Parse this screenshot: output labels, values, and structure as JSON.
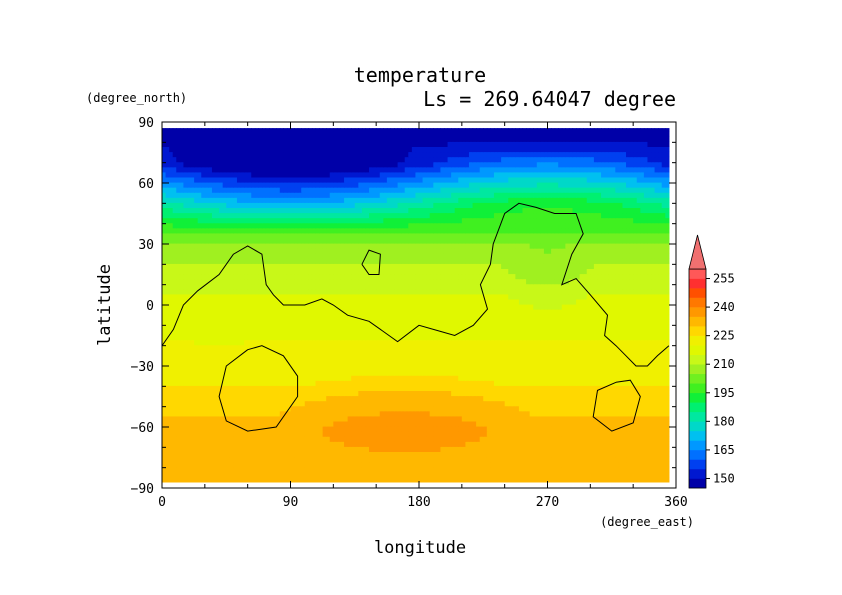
{
  "chart_data": {
    "type": "heatmap",
    "title": "temperature",
    "subtitle": "Ls = 269.64047 degree",
    "xlabel": "longitude",
    "ylabel": "latitude",
    "x_units": "(degree_east)",
    "y_units": "(degree_north)",
    "xlim": [
      0,
      360
    ],
    "ylim": [
      -90,
      90
    ],
    "x_ticks": [
      "0",
      "90",
      "180",
      "270",
      "360"
    ],
    "y_ticks": [
      "90",
      "60",
      "30",
      "0",
      "−30",
      "−60",
      "−90"
    ],
    "x_tick_values": [
      0,
      90,
      180,
      270,
      360
    ],
    "y_tick_values": [
      90,
      60,
      30,
      0,
      -30,
      -60,
      -90
    ],
    "data_extent": {
      "lon": [
        0,
        355
      ],
      "lat": [
        -87,
        87
      ]
    },
    "colorbar": {
      "levels": [
        145,
        150,
        155,
        160,
        165,
        170,
        175,
        180,
        185,
        190,
        195,
        200,
        205,
        210,
        215,
        220,
        225,
        230,
        235,
        240,
        245,
        250,
        255,
        260
      ],
      "labels": [
        "150",
        "165",
        "180",
        "195",
        "210",
        "225",
        "240",
        "255"
      ],
      "label_values": [
        150,
        165,
        180,
        195,
        210,
        225,
        240,
        255
      ],
      "colors": [
        "#0000a8",
        "#0018d0",
        "#0040f0",
        "#0070ff",
        "#0098ff",
        "#00c0f0",
        "#00d8c8",
        "#00e8a0",
        "#00f070",
        "#10f038",
        "#40f020",
        "#70f020",
        "#a0f020",
        "#c8f818",
        "#e0f800",
        "#f0f000",
        "#ffd800",
        "#ffb800",
        "#ff9800",
        "#ff7800",
        "#ff5000",
        "#ff3030",
        "#ff5858"
      ],
      "extend_max_color": "#f07070"
    },
    "contour_topography": [
      {
        "name": "coastline-north",
        "points": [
          [
            0,
            -20
          ],
          [
            8,
            -12
          ],
          [
            15,
            0
          ],
          [
            25,
            7
          ],
          [
            40,
            15
          ],
          [
            50,
            25
          ],
          [
            60,
            29
          ],
          [
            70,
            25
          ],
          [
            73,
            10
          ],
          [
            78,
            5
          ],
          [
            85,
            0
          ],
          [
            100,
            0
          ],
          [
            112,
            3
          ],
          [
            120,
            0
          ],
          [
            130,
            -5
          ],
          [
            145,
            -8
          ],
          [
            165,
            -18
          ],
          [
            180,
            -10
          ],
          [
            195,
            -13
          ],
          [
            205,
            -15
          ],
          [
            218,
            -10
          ],
          [
            228,
            -2
          ],
          [
            223,
            10
          ],
          [
            230,
            20
          ],
          [
            232,
            30
          ],
          [
            240,
            45
          ],
          [
            250,
            50
          ],
          [
            262,
            48
          ],
          [
            275,
            45
          ],
          [
            290,
            45
          ],
          [
            295,
            35
          ],
          [
            287,
            25
          ],
          [
            280,
            10
          ],
          [
            290,
            13
          ],
          [
            300,
            5
          ],
          [
            312,
            -5
          ],
          [
            310,
            -15
          ],
          [
            318,
            -20
          ],
          [
            325,
            -25
          ],
          [
            332,
            -30
          ],
          [
            340,
            -30
          ],
          [
            347,
            -25
          ],
          [
            355,
            -20
          ]
        ]
      },
      {
        "name": "island",
        "points": [
          [
            140,
            20
          ],
          [
            145,
            27
          ],
          [
            153,
            25
          ],
          [
            152,
            15
          ],
          [
            145,
            15
          ],
          [
            140,
            20
          ]
        ]
      },
      {
        "name": "basin-hellas",
        "points": [
          [
            60,
            -22
          ],
          [
            45,
            -30
          ],
          [
            40,
            -45
          ],
          [
            45,
            -57
          ],
          [
            60,
            -62
          ],
          [
            80,
            -60
          ],
          [
            95,
            -45
          ],
          [
            95,
            -35
          ],
          [
            85,
            -25
          ],
          [
            70,
            -20
          ],
          [
            60,
            -22
          ]
        ]
      },
      {
        "name": "basin-argyre",
        "points": [
          [
            318,
            -38
          ],
          [
            305,
            -42
          ],
          [
            302,
            -55
          ],
          [
            315,
            -62
          ],
          [
            330,
            -58
          ],
          [
            335,
            -45
          ],
          [
            328,
            -37
          ],
          [
            318,
            -38
          ]
        ]
      }
    ]
  }
}
